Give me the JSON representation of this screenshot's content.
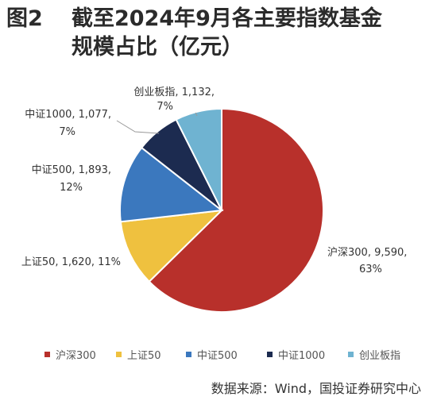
{
  "title": {
    "figure": "图2",
    "line1": "截至2024年9月各主要指数基金",
    "line2": "规模占比（亿元）"
  },
  "chart_data": {
    "type": "pie",
    "categories": [
      "沪深300",
      "上证50",
      "中证500",
      "中证1000",
      "创业板指"
    ],
    "values": [
      9590,
      1620,
      1893,
      1077,
      1132
    ],
    "percents": [
      "63%",
      "11%",
      "12%",
      "7%",
      "7%"
    ],
    "value_labels": [
      "9,590",
      "1,620",
      "1,893",
      "1,077",
      "1,132"
    ],
    "colors": [
      "#B8302B",
      "#EFC13F",
      "#3B78BE",
      "#1C2B50",
      "#6FB3D1"
    ],
    "legend_position": "bottom"
  },
  "source": "数据来源：Wind，国投证券研究中心"
}
